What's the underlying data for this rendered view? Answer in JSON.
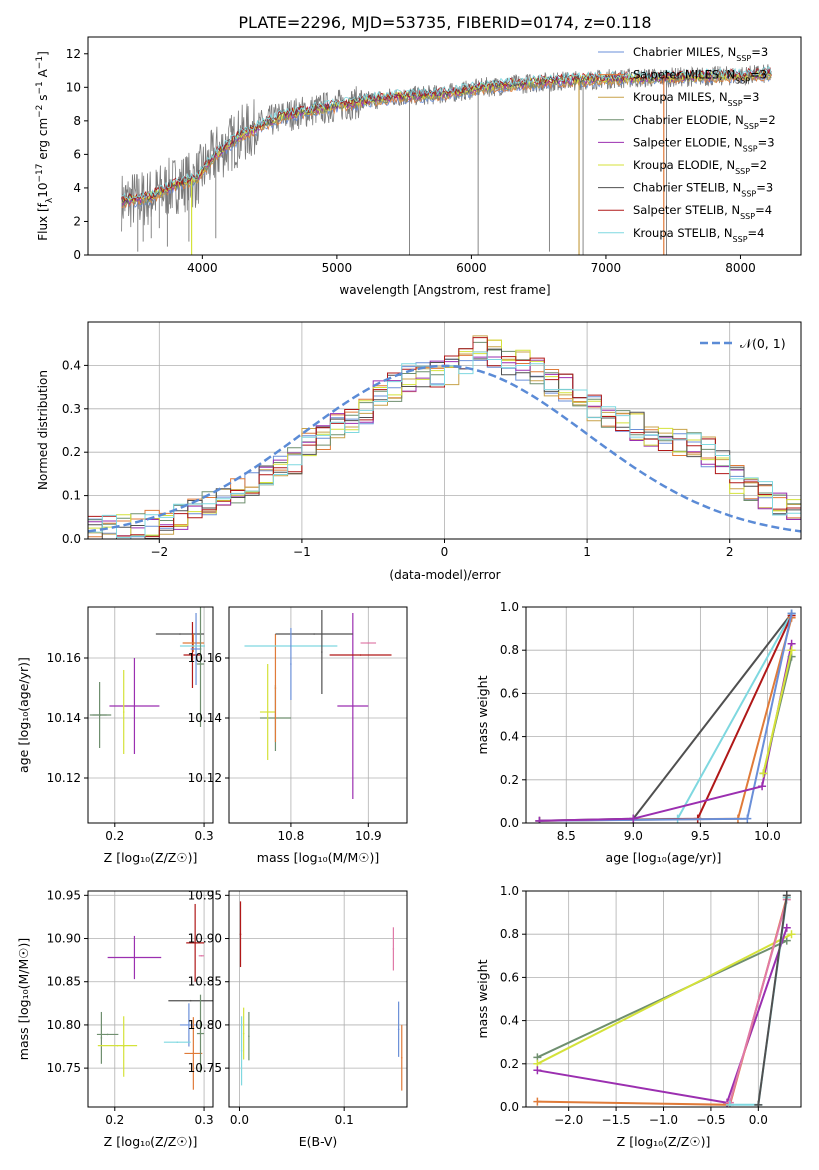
{
  "figure_title": "PLATE=2296, MJD=53735, FIBERID=0174, z=0.118",
  "colors": {
    "chabrier_miles": "#6a8fd8",
    "salpeter_miles": "#e07b39",
    "kroupa_miles": "#c8a24a",
    "chabrier_elodie": "#6f8f6f",
    "salpeter_elodie": "#9b2fb0",
    "kroupa_elodie": "#d4e23a",
    "chabrier_stelib": "#505050",
    "salpeter_stelib": "#b01818",
    "kroupa_stelib": "#7fd8e0",
    "gaussian": "#5b8bd6",
    "extra_pink": "#e07aa8"
  },
  "chart_data": [
    {
      "id": "spectrum",
      "type": "line",
      "title": "PLATE=2296, MJD=53735, FIBERID=0174, z=0.118",
      "xlabel": "wavelength [Angstrom, rest frame]",
      "ylabel": "Flux [f_λ 10^-17 erg cm^-2 s^-1 A^-1]",
      "xlim": [
        3150,
        8450
      ],
      "ylim": [
        0,
        13
      ],
      "xticks": [
        4000,
        5000,
        6000,
        7000,
        8000
      ],
      "yticks": [
        0,
        2,
        4,
        6,
        8,
        10,
        12
      ],
      "grid": false,
      "legend_placement": "top-right",
      "legend": [
        {
          "main": "Chabrier MILES, N",
          "sub": "SSP",
          "tail": "=3",
          "color": "chabrier_miles"
        },
        {
          "main": "Salpeter MILES, N",
          "sub": "SSP",
          "tail": "=3",
          "color": "salpeter_miles"
        },
        {
          "main": "Kroupa MILES, N",
          "sub": "SSP",
          "tail": "=3",
          "color": "kroupa_miles"
        },
        {
          "main": "Chabrier ELODIE, N",
          "sub": "SSP",
          "tail": "=2",
          "color": "chabrier_elodie"
        },
        {
          "main": "Salpeter ELODIE, N",
          "sub": "SSP",
          "tail": "=3",
          "color": "salpeter_elodie"
        },
        {
          "main": "Kroupa ELODIE, N",
          "sub": "SSP",
          "tail": "=2",
          "color": "kroupa_elodie"
        },
        {
          "main": "Chabrier STELIB, N",
          "sub": "SSP",
          "tail": "=3",
          "color": "chabrier_stelib"
        },
        {
          "main": "Salpeter STELIB, N",
          "sub": "SSP",
          "tail": "=4",
          "color": "salpeter_stelib"
        },
        {
          "main": "Kroupa STELIB, N",
          "sub": "SSP",
          "tail": "=4",
          "color": "kroupa_stelib"
        }
      ],
      "continuum_knots": [
        [
          3400,
          3.2
        ],
        [
          3600,
          3.4
        ],
        [
          3800,
          4.2
        ],
        [
          3950,
          4.5
        ],
        [
          4100,
          6.0
        ],
        [
          4300,
          7.2
        ],
        [
          4600,
          8.3
        ],
        [
          5000,
          8.9
        ],
        [
          5400,
          9.4
        ],
        [
          5800,
          9.6
        ],
        [
          6100,
          10.0
        ],
        [
          6500,
          10.3
        ],
        [
          7000,
          10.5
        ],
        [
          7500,
          10.6
        ],
        [
          8000,
          10.7
        ],
        [
          8230,
          10.8
        ]
      ],
      "data_spikes": [
        [
          3520,
          0.2
        ],
        [
          3560,
          0.8
        ],
        [
          3620,
          1.0
        ],
        [
          3680,
          1.6
        ],
        [
          3740,
          0.5
        ],
        [
          3900,
          0.8
        ],
        [
          4100,
          1.0
        ],
        [
          5540,
          0.0
        ],
        [
          6050,
          0.0
        ],
        [
          6580,
          0.2
        ],
        [
          6830,
          0.0
        ],
        [
          7450,
          0.0
        ]
      ]
    },
    {
      "id": "residuals",
      "type": "line",
      "xlabel": "(data-model)/error",
      "ylabel": "Normed distribution",
      "xlim": [
        -2.5,
        2.5
      ],
      "ylim": [
        0,
        0.5
      ],
      "xticks": [
        -2,
        -1,
        0,
        1,
        2
      ],
      "yticks": [
        0.0,
        0.1,
        0.2,
        0.3,
        0.4
      ],
      "grid": true,
      "legend_placement": "top-right",
      "gaussian_label": "𝒩(0, 1)",
      "hist_bins": [
        -2.5,
        2.5,
        50
      ],
      "hist_shape": [
        0.02,
        0.02,
        0.025,
        0.03,
        0.035,
        0.04,
        0.05,
        0.06,
        0.08,
        0.1,
        0.11,
        0.12,
        0.14,
        0.16,
        0.18,
        0.22,
        0.24,
        0.26,
        0.28,
        0.3,
        0.33,
        0.35,
        0.37,
        0.38,
        0.38,
        0.39,
        0.41,
        0.44,
        0.43,
        0.4,
        0.4,
        0.39,
        0.36,
        0.35,
        0.32,
        0.3,
        0.29,
        0.27,
        0.26,
        0.24,
        0.23,
        0.22,
        0.22,
        0.2,
        0.18,
        0.14,
        0.12,
        0.1,
        0.08,
        0.07
      ]
    },
    {
      "id": "age-vs-Z",
      "type": "scatter",
      "xlabel": "Z [log10(Z/Z☉)]",
      "ylabel": "age [log10(age/yr)]",
      "xlim": [
        0.17,
        0.31
      ],
      "ylim": [
        10.105,
        10.177
      ],
      "xticks": [
        0.2,
        0.3
      ],
      "yticks": [
        10.12,
        10.14,
        10.16
      ],
      "grid": true,
      "points": [
        {
          "x": 0.183,
          "y": 10.141,
          "xerr": 0.008,
          "yerr": 0.011,
          "color": "chabrier_elodie"
        },
        {
          "x": 0.184,
          "y": 10.141,
          "xerr": 0.012,
          "yerr": 0.0,
          "color": "chabrier_elodie"
        },
        {
          "x": 0.222,
          "y": 10.144,
          "xerr": 0.028,
          "yerr": 0.016,
          "color": "salpeter_elodie"
        },
        {
          "x": 0.21,
          "y": 10.142,
          "xerr": 0.0,
          "yerr": 0.014,
          "color": "kroupa_elodie"
        },
        {
          "x": 0.273,
          "y": 10.168,
          "xerr": 0.027,
          "yerr": 0.0,
          "color": "chabrier_stelib"
        },
        {
          "x": 0.287,
          "y": 10.161,
          "xerr": 0.01,
          "yerr": 0.011,
          "color": "salpeter_stelib"
        },
        {
          "x": 0.288,
          "y": 10.165,
          "xerr": 0.012,
          "yerr": 0.003,
          "color": "salpeter_miles"
        },
        {
          "x": 0.291,
          "y": 10.163,
          "xerr": 0.006,
          "yerr": 0.012,
          "color": "chabrier_miles"
        },
        {
          "x": 0.287,
          "y": 10.164,
          "xerr": 0.014,
          "yerr": 0.0,
          "color": "kroupa_stelib"
        },
        {
          "x": 0.296,
          "y": 10.158,
          "xerr": 0.004,
          "yerr": 0.021,
          "color": "chabrier_elodie"
        }
      ]
    },
    {
      "id": "age-vs-mass",
      "type": "scatter",
      "xlabel": "mass [log10(M/M☉)]",
      "ylabel": "",
      "xlim": [
        10.72,
        10.95
      ],
      "ylim": [
        10.105,
        10.177
      ],
      "xticks": [
        10.8,
        10.9
      ],
      "yticks": [
        10.12,
        10.14,
        10.16
      ],
      "grid": true,
      "points": [
        {
          "x": 10.78,
          "y": 10.14,
          "xerr": 0.02,
          "yerr": 0.011,
          "color": "chabrier_elodie"
        },
        {
          "x": 10.77,
          "y": 10.142,
          "xerr": 0.01,
          "yerr": 0.016,
          "color": "kroupa_elodie"
        },
        {
          "x": 10.78,
          "y": 10.15,
          "xerr": 0.0,
          "yerr": 0.018,
          "color": "salpeter_miles"
        },
        {
          "x": 10.88,
          "y": 10.144,
          "xerr": 0.02,
          "yerr": 0.031,
          "color": "salpeter_elodie"
        },
        {
          "x": 10.83,
          "y": 10.168,
          "xerr": 0.05,
          "yerr": 0.0,
          "color": "chabrier_stelib"
        },
        {
          "x": 10.8,
          "y": 10.164,
          "xerr": 0.06,
          "yerr": 0.0,
          "color": "kroupa_stelib"
        },
        {
          "x": 10.89,
          "y": 10.161,
          "xerr": 0.04,
          "yerr": 0.0,
          "color": "salpeter_stelib"
        },
        {
          "x": 10.8,
          "y": 10.158,
          "xerr": 0.0,
          "yerr": 0.012,
          "color": "chabrier_miles"
        },
        {
          "x": 10.84,
          "y": 10.162,
          "xerr": 0.0,
          "yerr": 0.014,
          "color": "chabrier_stelib"
        },
        {
          "x": 10.9,
          "y": 10.165,
          "xerr": 0.01,
          "yerr": 0.0,
          "color": "extra_pink"
        }
      ]
    },
    {
      "id": "mass-weight-vs-age",
      "type": "line",
      "xlabel": "age [log10(age/yr)]",
      "ylabel": "mass weight",
      "xlim": [
        8.2,
        10.25
      ],
      "ylim": [
        0,
        1.0
      ],
      "xticks": [
        8.5,
        9.0,
        9.5,
        10.0
      ],
      "yticks": [
        0.0,
        0.2,
        0.4,
        0.6,
        0.8,
        1.0
      ],
      "grid": true,
      "series": [
        {
          "color": "chabrier_stelib",
          "x": [
            8.3,
            9.0,
            10.18
          ],
          "y": [
            0.01,
            0.02,
            0.97
          ]
        },
        {
          "color": "kroupa_stelib",
          "x": [
            8.3,
            9.33,
            10.18
          ],
          "y": [
            0.01,
            0.02,
            0.97
          ]
        },
        {
          "color": "salpeter_stelib",
          "x": [
            8.3,
            9.48,
            10.18
          ],
          "y": [
            0.01,
            0.02,
            0.96
          ]
        },
        {
          "color": "salpeter_miles",
          "x": [
            8.3,
            9.78,
            10.18
          ],
          "y": [
            0.01,
            0.02,
            0.95
          ]
        },
        {
          "color": "chabrier_miles",
          "x": [
            8.3,
            9.85,
            10.18
          ],
          "y": [
            0.01,
            0.02,
            0.97
          ]
        },
        {
          "color": "salpeter_elodie",
          "x": [
            8.3,
            9.0,
            9.96,
            10.18
          ],
          "y": [
            0.01,
            0.02,
            0.17,
            0.83
          ]
        },
        {
          "color": "chabrier_elodie",
          "x": [
            9.97,
            10.18
          ],
          "y": [
            0.23,
            0.77
          ]
        },
        {
          "color": "kroupa_elodie",
          "x": [
            9.97,
            10.18
          ],
          "y": [
            0.23,
            0.8
          ]
        }
      ]
    },
    {
      "id": "mass-vs-Z",
      "type": "scatter",
      "xlabel": "Z [log10(Z/Z☉)]",
      "ylabel": "mass [log10(M/M☉)]",
      "xlim": [
        0.17,
        0.31
      ],
      "ylim": [
        10.705,
        10.955
      ],
      "xticks": [
        0.2,
        0.3
      ],
      "yticks": [
        10.75,
        10.8,
        10.85,
        10.9,
        10.95
      ],
      "grid": true,
      "points": [
        {
          "x": 0.185,
          "y": 10.785,
          "xerr": 0.0,
          "yerr": 0.03,
          "color": "chabrier_elodie"
        },
        {
          "x": 0.192,
          "y": 10.789,
          "xerr": 0.012,
          "yerr": 0.0,
          "color": "chabrier_elodie"
        },
        {
          "x": 0.203,
          "y": 10.776,
          "xerr": 0.022,
          "yerr": 0.0,
          "color": "kroupa_elodie"
        },
        {
          "x": 0.21,
          "y": 10.775,
          "xerr": 0.0,
          "yerr": 0.035,
          "color": "kroupa_elodie"
        },
        {
          "x": 0.222,
          "y": 10.878,
          "xerr": 0.03,
          "yerr": 0.025,
          "color": "salpeter_elodie"
        },
        {
          "x": 0.29,
          "y": 10.895,
          "xerr": 0.01,
          "yerr": 0.045,
          "color": "salpeter_stelib"
        },
        {
          "x": 0.285,
          "y": 10.828,
          "xerr": 0.025,
          "yerr": 0.0,
          "color": "chabrier_stelib"
        },
        {
          "x": 0.283,
          "y": 10.8,
          "xerr": 0.01,
          "yerr": 0.025,
          "color": "chabrier_miles"
        },
        {
          "x": 0.27,
          "y": 10.78,
          "xerr": 0.015,
          "yerr": 0.0,
          "color": "kroupa_stelib"
        },
        {
          "x": 0.288,
          "y": 10.767,
          "xerr": 0.01,
          "yerr": 0.042,
          "color": "salpeter_miles"
        },
        {
          "x": 0.296,
          "y": 10.79,
          "xerr": 0.004,
          "yerr": 0.045,
          "color": "chabrier_elodie"
        },
        {
          "x": 0.297,
          "y": 10.88,
          "xerr": 0.003,
          "yerr": 0.0,
          "color": "extra_pink"
        }
      ]
    },
    {
      "id": "mass-vs-EBV",
      "type": "scatter",
      "xlabel": "E(B-V)",
      "ylabel": "",
      "xlim": [
        -0.01,
        0.16
      ],
      "ylim": [
        10.705,
        10.955
      ],
      "xticks": [
        0.0,
        0.1
      ],
      "yticks": [
        10.75,
        10.8,
        10.85,
        10.9,
        10.95
      ],
      "grid": true,
      "points": [
        {
          "x": 0.001,
          "y": 10.905,
          "xerr": 0.0,
          "yerr": 0.038,
          "color": "salpeter_stelib"
        },
        {
          "x": 0.002,
          "y": 10.77,
          "xerr": 0.0,
          "yerr": 0.04,
          "color": "kroupa_stelib"
        },
        {
          "x": 0.004,
          "y": 10.79,
          "xerr": 0.0,
          "yerr": 0.03,
          "color": "kroupa_elodie"
        },
        {
          "x": 0.009,
          "y": 10.787,
          "xerr": 0.0,
          "yerr": 0.028,
          "color": "chabrier_elodie"
        },
        {
          "x": 0.147,
          "y": 10.888,
          "xerr": 0.0,
          "yerr": 0.025,
          "color": "extra_pink"
        },
        {
          "x": 0.152,
          "y": 10.795,
          "xerr": 0.0,
          "yerr": 0.032,
          "color": "chabrier_miles"
        },
        {
          "x": 0.155,
          "y": 10.762,
          "xerr": 0.0,
          "yerr": 0.038,
          "color": "salpeter_miles"
        }
      ]
    },
    {
      "id": "mass-weight-vs-Z",
      "type": "line",
      "xlabel": "Z [log10(Z/Z☉)]",
      "ylabel": "mass weight",
      "xlim": [
        -2.45,
        0.45
      ],
      "ylim": [
        0,
        1.0
      ],
      "xticks": [
        -2.0,
        -1.5,
        -1.0,
        -0.5,
        0.0
      ],
      "yticks": [
        0.0,
        0.2,
        0.4,
        0.6,
        0.8,
        1.0
      ],
      "grid": true,
      "series": [
        {
          "color": "chabrier_elodie",
          "x": [
            -2.33,
            0.3
          ],
          "y": [
            0.23,
            0.77
          ]
        },
        {
          "color": "kroupa_elodie",
          "x": [
            -2.33,
            0.35
          ],
          "y": [
            0.2,
            0.8
          ]
        },
        {
          "color": "salpeter_elodie",
          "x": [
            -2.33,
            -0.33,
            0.3
          ],
          "y": [
            0.17,
            0.02,
            0.83
          ]
        },
        {
          "color": "salpeter_miles",
          "x": [
            -2.33,
            -0.3,
            0.3
          ],
          "y": [
            0.025,
            0.01,
            0.97
          ]
        },
        {
          "color": "extra_pink",
          "x": [
            -0.3,
            0.3
          ],
          "y": [
            0.02,
            0.96
          ]
        },
        {
          "color": "kroupa_stelib",
          "x": [
            -0.3,
            0.0,
            0.3
          ],
          "y": [
            0.01,
            0.01,
            0.97
          ]
        },
        {
          "color": "chabrier_stelib",
          "x": [
            0.0,
            0.3
          ],
          "y": [
            0.01,
            0.98
          ]
        }
      ]
    }
  ]
}
